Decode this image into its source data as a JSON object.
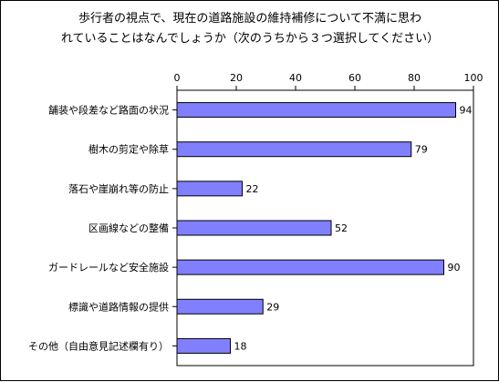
{
  "chart_data": {
    "type": "bar",
    "orientation": "horizontal",
    "title_line1": "歩行者の視点で、現在の道路施設の維持補修について不満に思わ",
    "title_line2": "れていることはなんでしょうか（次のうちから３つ選択してください）",
    "categories": [
      "舗装や段差など路面の状況",
      "樹木の剪定や除草",
      "落石や崖崩れ等の防止",
      "区画線などの整備",
      "ガードレールなど安全施設",
      "標識や道路情報の提供",
      "その他（自由意見記述欄有り）"
    ],
    "values": [
      94,
      79,
      22,
      52,
      90,
      29,
      18
    ],
    "xlim": [
      0,
      100
    ],
    "xticks": [
      "0",
      "20",
      "40",
      "60",
      "80",
      "100"
    ],
    "bar_color": "#8080ff",
    "grid": false,
    "legend": "none"
  }
}
